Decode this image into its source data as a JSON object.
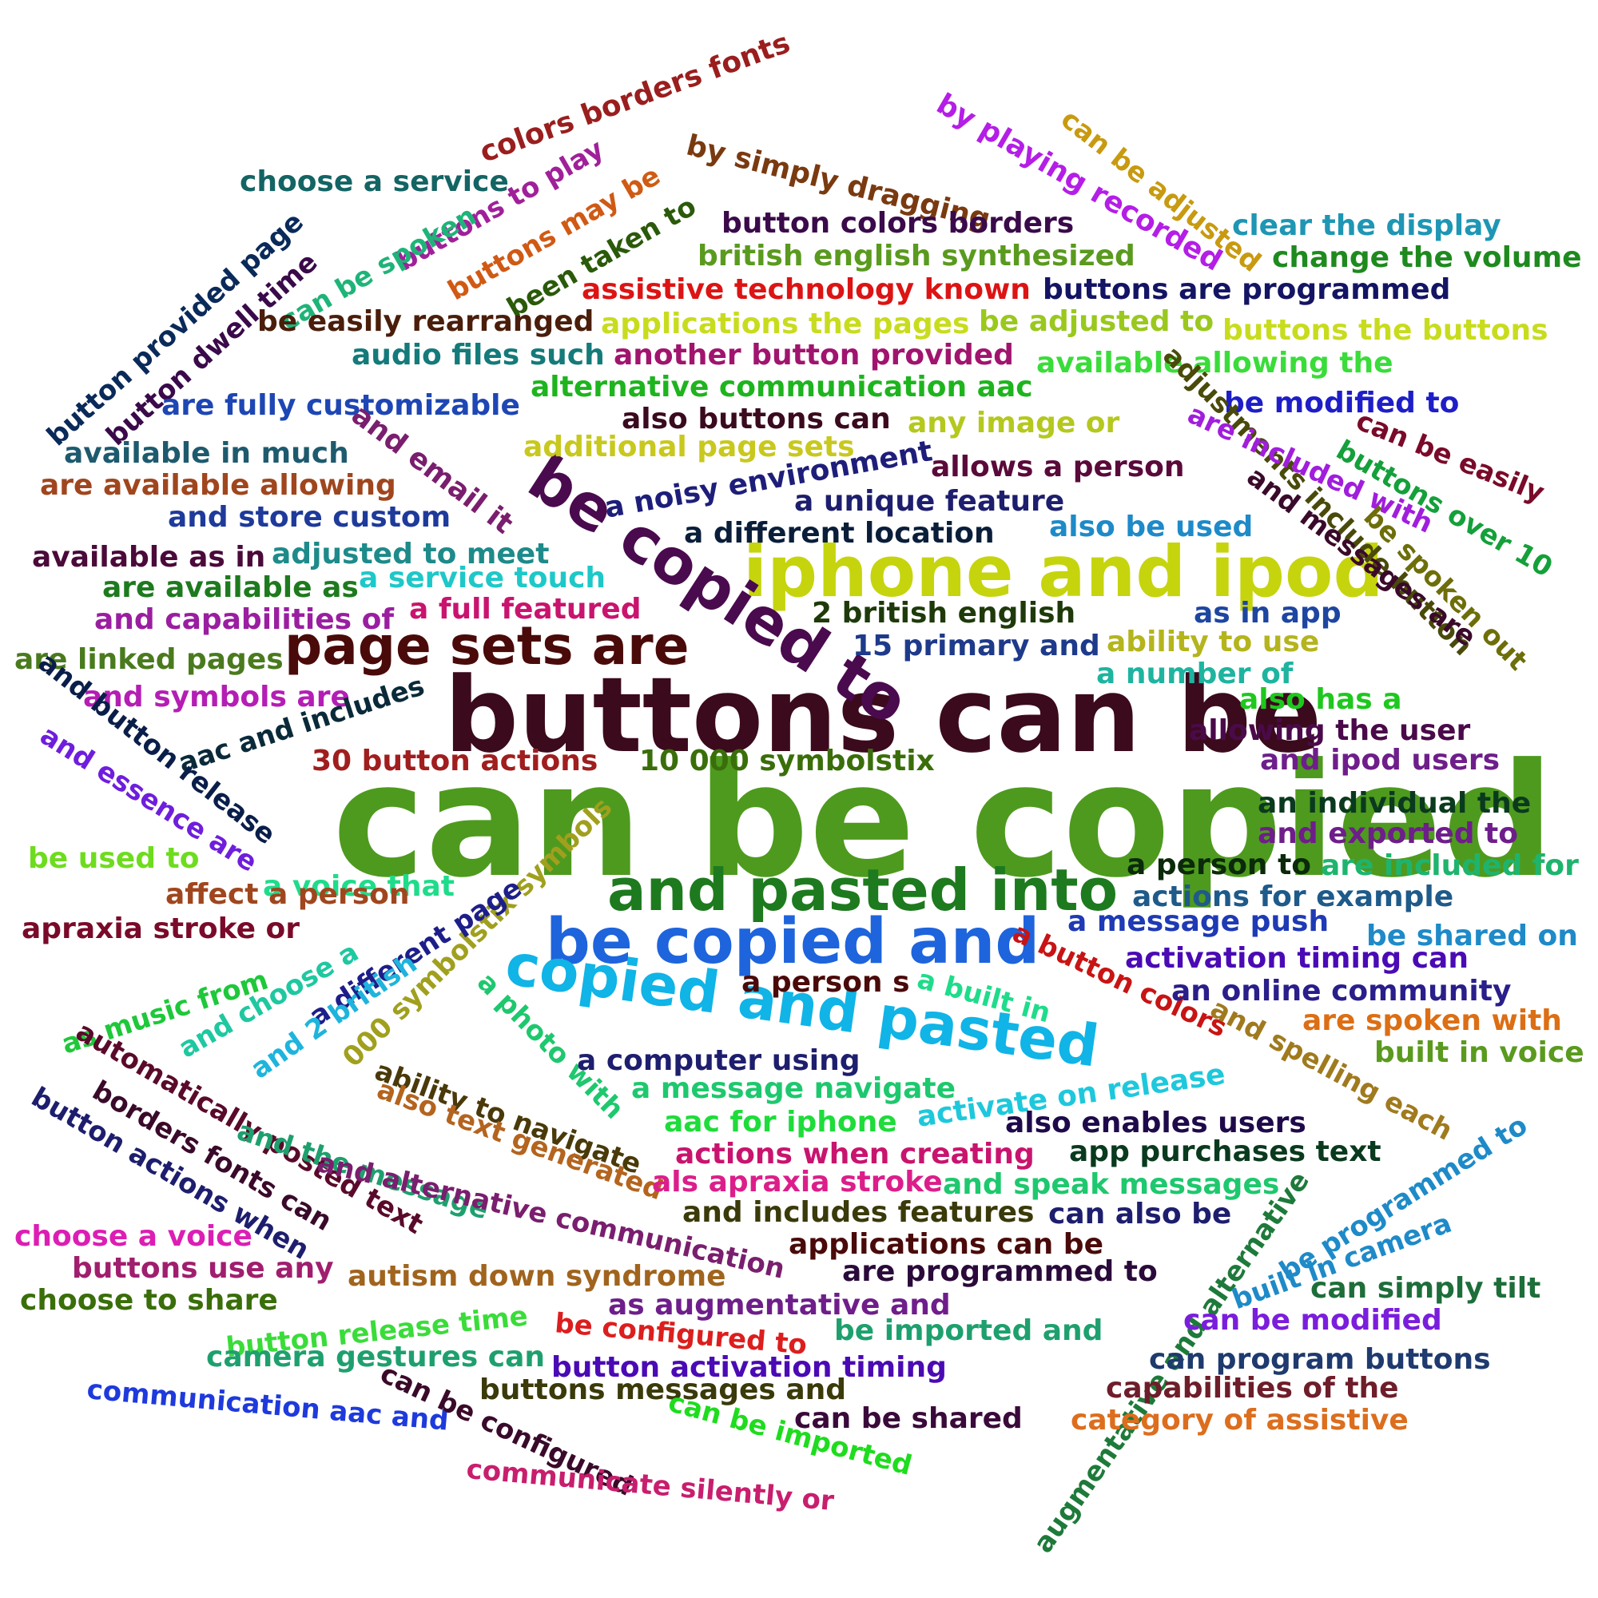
{
  "words": [
    {
      "text": "can be copied",
      "color": "#4e9a1e"
    },
    {
      "text": "buttons can be",
      "color": "#3b0a1c"
    },
    {
      "text": "iphone and ipod",
      "color": "#c6d40e"
    },
    {
      "text": "be copied to",
      "color": "#4a0a4e"
    },
    {
      "text": "page sets are",
      "color": "#4a0a0a"
    },
    {
      "text": "and pasted into",
      "color": "#1e7a1e"
    },
    {
      "text": "be copied and",
      "color": "#1e64dc"
    },
    {
      "text": "copied and pasted",
      "color": "#10b4e6"
    },
    {
      "text": "colors borders fonts",
      "color": "#9a1e1e"
    },
    {
      "text": "by simply dragging",
      "color": "#7a3a10"
    },
    {
      "text": "by playing recorded",
      "color": "#b41ee6"
    },
    {
      "text": "can be adjusted",
      "color": "#c89a10"
    },
    {
      "text": "choose a service",
      "color": "#146464"
    },
    {
      "text": "buttons to play",
      "color": "#a0209a"
    },
    {
      "text": "buttons may be",
      "color": "#d05a14"
    },
    {
      "text": "been taken to",
      "color": "#2a5a0a"
    },
    {
      "text": "can be spoken",
      "color": "#1eb478"
    },
    {
      "text": "button colors borders",
      "color": "#3a0a4a"
    },
    {
      "text": "british english synthesized",
      "color": "#5a9a1e"
    },
    {
      "text": "clear the display",
      "color": "#1e96b4"
    },
    {
      "text": "change the volume",
      "color": "#1e8a1e"
    },
    {
      "text": "assistive technology known",
      "color": "#dc1414"
    },
    {
      "text": "buttons are programmed",
      "color": "#141464"
    },
    {
      "text": "button provided page",
      "color": "#0a2a5a"
    },
    {
      "text": "button dwell time",
      "color": "#3a0a4a"
    },
    {
      "text": "be easily rearranged",
      "color": "#4a1e0a"
    },
    {
      "text": "applications the pages",
      "color": "#c8dc1e"
    },
    {
      "text": "be adjusted to",
      "color": "#9ac81e"
    },
    {
      "text": "buttons the buttons",
      "color": "#c8dc1e"
    },
    {
      "text": "audio files such",
      "color": "#147a7a"
    },
    {
      "text": "another button provided",
      "color": "#a0146e"
    },
    {
      "text": "available allowing the",
      "color": "#3adc3a"
    },
    {
      "text": "alternative communication aac",
      "color": "#1eb41e"
    },
    {
      "text": "are fully customizable",
      "color": "#1e46b4"
    },
    {
      "text": "be modified to",
      "color": "#1e1ec8"
    },
    {
      "text": "also buttons can",
      "color": "#3a0a1e"
    },
    {
      "text": "any image or",
      "color": "#b4c81e"
    },
    {
      "text": "adjustments include button",
      "color": "#4a4a0a"
    },
    {
      "text": "are included with",
      "color": "#a01edc"
    },
    {
      "text": "can be easily",
      "color": "#7a0a2a"
    },
    {
      "text": "and messages are",
      "color": "#3a0a2a"
    },
    {
      "text": "buttons over 10",
      "color": "#14a03a"
    },
    {
      "text": "available in much",
      "color": "#1e5a6e"
    },
    {
      "text": "and email it",
      "color": "#7a1e6e"
    },
    {
      "text": "additional page sets",
      "color": "#c8c81e"
    },
    {
      "text": "a noisy environment",
      "color": "#1e1e7a"
    },
    {
      "text": "allows a person",
      "color": "#5a0a3a"
    },
    {
      "text": "are available allowing",
      "color": "#a0461e"
    },
    {
      "text": "a unique feature",
      "color": "#1e1e6e"
    },
    {
      "text": "and store custom",
      "color": "#1e3a9a"
    },
    {
      "text": "a different location",
      "color": "#0a1e3a"
    },
    {
      "text": "also be used",
      "color": "#1e8ac8"
    },
    {
      "text": "be spoken out",
      "color": "#6e6e0a"
    },
    {
      "text": "available as in",
      "color": "#4a0a3a"
    },
    {
      "text": "adjusted to meet",
      "color": "#1e8a8a"
    },
    {
      "text": "are available as",
      "color": "#1e7a1e"
    },
    {
      "text": "a service touch",
      "color": "#1ec8c8"
    },
    {
      "text": "and capabilities of",
      "color": "#9a1ea0"
    },
    {
      "text": "a full featured",
      "color": "#c8146e"
    },
    {
      "text": "2 british english",
      "color": "#1e3a0a"
    },
    {
      "text": "as in app",
      "color": "#1e46a0"
    },
    {
      "text": "are linked pages",
      "color": "#4a7a1e"
    },
    {
      "text": "15 primary and",
      "color": "#1e3a8a"
    },
    {
      "text": "ability to use",
      "color": "#b4b41e"
    },
    {
      "text": "a number of",
      "color": "#1eb4a0"
    },
    {
      "text": "and symbols are",
      "color": "#b41eb4"
    },
    {
      "text": "aac and includes",
      "color": "#0a2a3a"
    },
    {
      "text": "also has a",
      "color": "#1ec81e"
    },
    {
      "text": "and button release",
      "color": "#0a1e4a"
    },
    {
      "text": "allowing the user",
      "color": "#4a0a4a"
    },
    {
      "text": "and essence are",
      "color": "#6e1edc"
    },
    {
      "text": "30 button actions",
      "color": "#a01e1e"
    },
    {
      "text": "10 000 symbolstix",
      "color": "#3a6e0a"
    },
    {
      "text": "and ipod users",
      "color": "#6e1e8a"
    },
    {
      "text": "an individual the",
      "color": "#0a3a1e"
    },
    {
      "text": "and exported to",
      "color": "#6e1e8a"
    },
    {
      "text": "be used to",
      "color": "#6edc1e"
    },
    {
      "text": "a voice that",
      "color": "#1edc8a"
    },
    {
      "text": "000 symbolstix symbols",
      "color": "#a0a01e"
    },
    {
      "text": "a person to",
      "color": "#0a2a0a"
    },
    {
      "text": "are included for",
      "color": "#1eb46e"
    },
    {
      "text": "affect a person",
      "color": "#a0461e"
    },
    {
      "text": "a different page",
      "color": "#1e1e8a"
    },
    {
      "text": "actions for example",
      "color": "#1e5a8a"
    },
    {
      "text": "apraxia stroke or",
      "color": "#7a0a2a"
    },
    {
      "text": "and choose a",
      "color": "#1ec8a0"
    },
    {
      "text": "a message push",
      "color": "#1e3ab4"
    },
    {
      "text": "be shared on",
      "color": "#1e8ac8"
    },
    {
      "text": "a button colors",
      "color": "#c81414"
    },
    {
      "text": "activation timing can",
      "color": "#4a0ab4"
    },
    {
      "text": "as music from",
      "color": "#1ec83a"
    },
    {
      "text": "and 2 british",
      "color": "#1eb4dc"
    },
    {
      "text": "a person s",
      "color": "#4a0a0a"
    },
    {
      "text": "a built in",
      "color": "#1edc8a"
    },
    {
      "text": "an online community",
      "color": "#2a1e8a"
    },
    {
      "text": "and spelling each",
      "color": "#a07a1e"
    },
    {
      "text": "are spoken with",
      "color": "#dc6e14"
    },
    {
      "text": "built in voice",
      "color": "#5a9a1e"
    },
    {
      "text": "a photo with",
      "color": "#1ec86e"
    },
    {
      "text": "a computer using",
      "color": "#1e1e6e"
    },
    {
      "text": "automatically posted text",
      "color": "#5a0a2a"
    },
    {
      "text": "borders fonts can",
      "color": "#3a0a2a"
    },
    {
      "text": "button actions when",
      "color": "#1e1e6e"
    },
    {
      "text": "ability to navigate",
      "color": "#4a3a0a"
    },
    {
      "text": "a message navigate",
      "color": "#1ec86e"
    },
    {
      "text": "activate on release",
      "color": "#1ec8dc"
    },
    {
      "text": "also text generated",
      "color": "#b4641e"
    },
    {
      "text": "and the message",
      "color": "#1ea06e"
    },
    {
      "text": "aac for iphone",
      "color": "#1edc3a"
    },
    {
      "text": "also enables users",
      "color": "#1e0a4a"
    },
    {
      "text": "app purchases text",
      "color": "#0a3a1e"
    },
    {
      "text": "and alternative communication",
      "color": "#7a1e6e"
    },
    {
      "text": "actions when creating",
      "color": "#c8146e"
    },
    {
      "text": "als apraxia stroke",
      "color": "#dc1e8a"
    },
    {
      "text": "and speak messages",
      "color": "#1ec86e"
    },
    {
      "text": "augmentative and alternative",
      "color": "#1e7a3a"
    },
    {
      "text": "be programmed to",
      "color": "#1e8ac8"
    },
    {
      "text": "choose a voice",
      "color": "#dc1eb4"
    },
    {
      "text": "buttons use any",
      "color": "#a01e6e"
    },
    {
      "text": "and includes features",
      "color": "#3a3a0a"
    },
    {
      "text": "can also be",
      "color": "#1e1e6e"
    },
    {
      "text": "built in camera",
      "color": "#1e8ac8"
    },
    {
      "text": "applications can be",
      "color": "#4a0a0a"
    },
    {
      "text": "are programmed to",
      "color": "#2a0a3a"
    },
    {
      "text": "autism down syndrome",
      "color": "#a0641e"
    },
    {
      "text": "choose to share",
      "color": "#3a6e0a"
    },
    {
      "text": "can simply tilt",
      "color": "#1e6e3a"
    },
    {
      "text": "as augmentative and",
      "color": "#6e1e8a"
    },
    {
      "text": "button release time",
      "color": "#3adc3a"
    },
    {
      "text": "be configured to",
      "color": "#dc1e1e"
    },
    {
      "text": "be imported and",
      "color": "#1ea06e"
    },
    {
      "text": "can be modified",
      "color": "#7a1edc"
    },
    {
      "text": "camera gestures can",
      "color": "#1ea06e"
    },
    {
      "text": "button activation timing",
      "color": "#4a0ab4"
    },
    {
      "text": "can program buttons",
      "color": "#1e3a6e"
    },
    {
      "text": "communication aac and",
      "color": "#1e3adc"
    },
    {
      "text": "can be configured",
      "color": "#3a0a2a"
    },
    {
      "text": "buttons messages and",
      "color": "#3a3a0a"
    },
    {
      "text": "capabilities of the",
      "color": "#6e1e2a"
    },
    {
      "text": "can be imported",
      "color": "#1edc1e"
    },
    {
      "text": "can be shared",
      "color": "#3a0a3a"
    },
    {
      "text": "category of assistive",
      "color": "#dc6e1e"
    },
    {
      "text": "communicate silently or",
      "color": "#c81e6e"
    }
  ]
}
